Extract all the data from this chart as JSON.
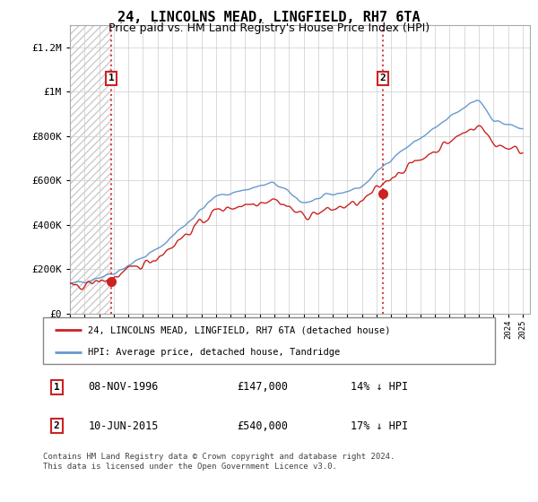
{
  "title": "24, LINCOLNS MEAD, LINGFIELD, RH7 6TA",
  "subtitle": "Price paid vs. HM Land Registry's House Price Index (HPI)",
  "legend_line1": "24, LINCOLNS MEAD, LINGFIELD, RH7 6TA (detached house)",
  "legend_line2": "HPI: Average price, detached house, Tandridge",
  "sale1_date": "08-NOV-1996",
  "sale1_price": 147000,
  "sale1_note": "14% ↓ HPI",
  "sale2_date": "10-JUN-2015",
  "sale2_price": 540000,
  "sale2_note": "17% ↓ HPI",
  "footer": "Contains HM Land Registry data © Crown copyright and database right 2024.\nThis data is licensed under the Open Government Licence v3.0.",
  "hpi_color": "#6699cc",
  "price_color": "#cc2222",
  "sale_marker_color": "#cc2222",
  "dashed_line_color": "#cc2222",
  "ylim_max": 1300000,
  "ylim_min": 0,
  "sale1_t": 1996.833,
  "sale2_t": 2015.417
}
